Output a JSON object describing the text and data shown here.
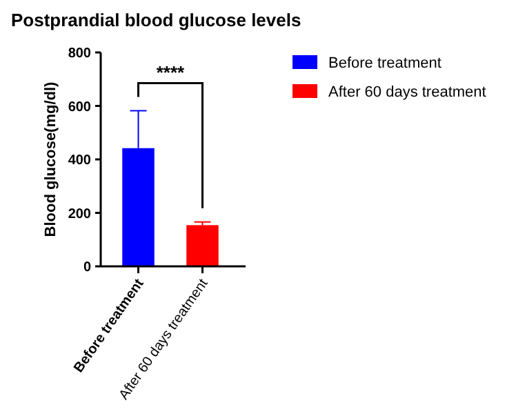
{
  "chart_data": {
    "type": "bar",
    "title": "Postprandial blood glucose levels",
    "ylabel": "Blood glucose(mg/dl)",
    "categories": [
      "Before treatment",
      "After 60 days treatment"
    ],
    "series": [
      {
        "name": "Before treatment",
        "color": "#0000ff",
        "values": [
          442,
          null
        ],
        "errors": [
          [
            442,
            582
          ],
          null
        ]
      },
      {
        "name": "After 60 days treatment",
        "color": "#ff0000",
        "values": [
          null,
          154
        ],
        "errors": [
          null,
          [
            154,
            166
          ]
        ]
      }
    ],
    "stacked": true,
    "ylim": [
      0,
      800
    ],
    "yticks": [
      0,
      200,
      400,
      600,
      800
    ],
    "annotations": [
      "****"
    ],
    "legend": "right",
    "grid": false
  }
}
